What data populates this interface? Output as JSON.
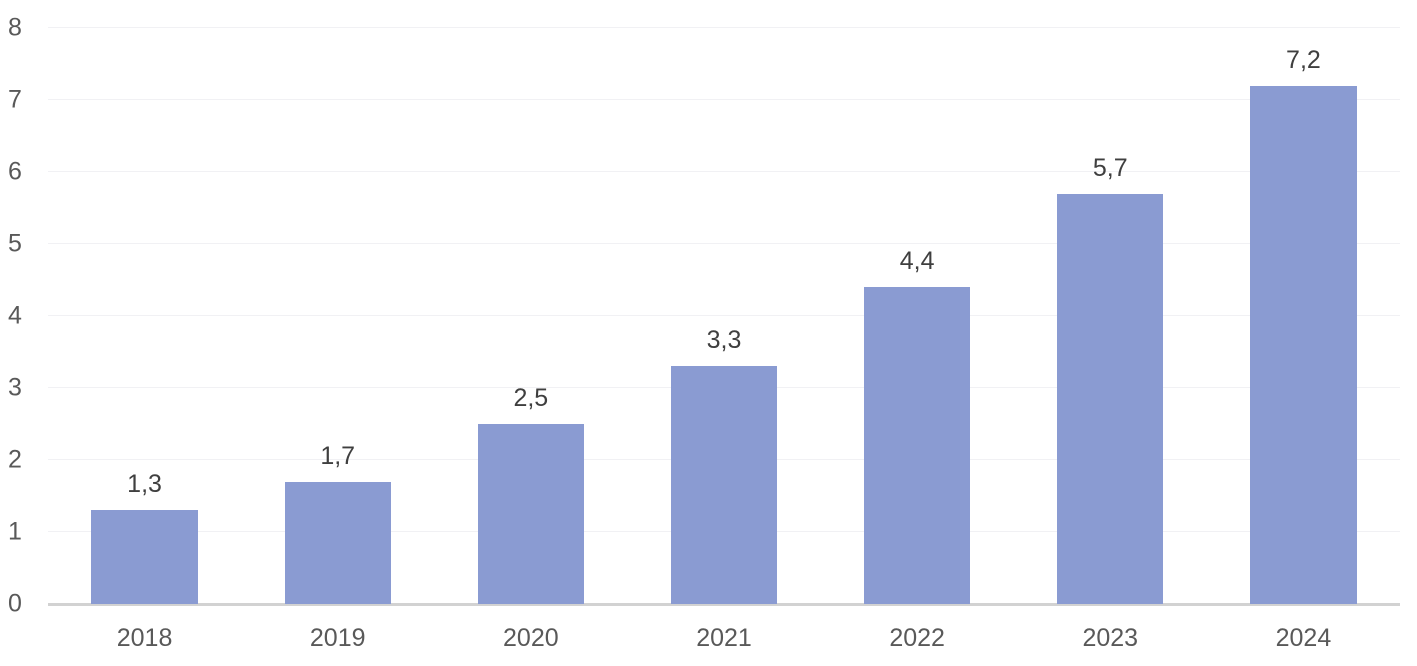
{
  "chart_data": {
    "type": "bar",
    "title": "",
    "xlabel": "",
    "ylabel": "",
    "categories": [
      "2018",
      "2019",
      "2020",
      "2021",
      "2022",
      "2023",
      "2024"
    ],
    "values": [
      1.3,
      1.7,
      2.5,
      3.3,
      4.4,
      5.7,
      7.2
    ],
    "data_labels": [
      "1,3",
      "1,7",
      "2,5",
      "3,3",
      "4,4",
      "5,7",
      "7,2"
    ],
    "yticks": [
      0,
      1,
      2,
      3,
      4,
      5,
      6,
      7,
      8
    ],
    "ytick_labels": [
      "0",
      "1",
      "2",
      "3",
      "4",
      "5",
      "6",
      "7",
      "8"
    ],
    "ylim": [
      0,
      8
    ],
    "grid": "horizontal",
    "legend_position": "none",
    "colors": {
      "bar_fill": "#8A9BD2",
      "gridline": "#F1F1F4",
      "baseline": "#D2D2D2",
      "tick_label": "#595959",
      "data_label": "#3F3F3F"
    },
    "bar_width_ratio": 0.55
  }
}
